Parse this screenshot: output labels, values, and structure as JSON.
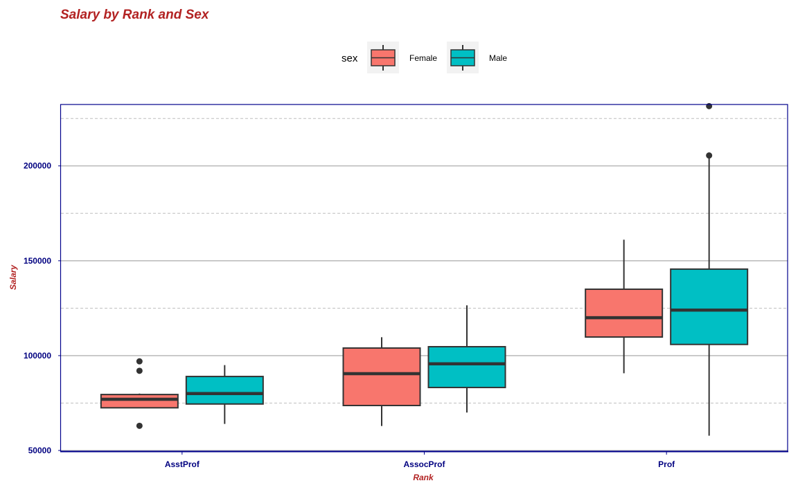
{
  "chart_data": {
    "type": "box",
    "title": "Salary by Rank and Sex",
    "xlabel": "Rank",
    "ylabel": "Salary",
    "categories": [
      "AsstProf",
      "AssocProf",
      "Prof"
    ],
    "ylim": [
      50000,
      232000
    ],
    "yticks": [
      50000,
      100000,
      150000,
      200000
    ],
    "ytick_labels": [
      "50000",
      "100000",
      "150000",
      "200000"
    ],
    "minor_grid": [
      75000,
      125000,
      175000,
      225000
    ],
    "grid": true,
    "legend": {
      "title": "sex",
      "placement": "top",
      "entries": [
        "Female",
        "Male"
      ]
    },
    "series": [
      {
        "name": "Female",
        "color": "#f8766d",
        "boxes": [
          {
            "category": "AsstProf",
            "whisker_low": 72500,
            "q1": 72500,
            "median": 77000,
            "q3": 79500,
            "whisker_high": 80000,
            "outliers": [
              97000,
              92000,
              63000
            ]
          },
          {
            "category": "AssocProf",
            "whisker_low": 62900,
            "q1": 73700,
            "median": 90500,
            "q3": 104000,
            "whisker_high": 109700,
            "outliers": []
          },
          {
            "category": "Prof",
            "whisker_low": 90700,
            "q1": 109800,
            "median": 120000,
            "q3": 135000,
            "whisker_high": 161100,
            "outliers": []
          }
        ]
      },
      {
        "name": "Male",
        "color": "#00bfc4",
        "boxes": [
          {
            "category": "AsstProf",
            "whisker_low": 64000,
            "q1": 74500,
            "median": 80000,
            "q3": 89000,
            "whisker_high": 95000,
            "outliers": []
          },
          {
            "category": "AssocProf",
            "whisker_low": 70000,
            "q1": 83200,
            "median": 95700,
            "q3": 104700,
            "whisker_high": 126500,
            "outliers": []
          },
          {
            "category": "Prof",
            "whisker_low": 57800,
            "q1": 105900,
            "median": 124000,
            "q3": 145600,
            "whisker_high": 205500,
            "outliers": [
              231500,
              205500
            ]
          }
        ]
      }
    ],
    "colors": {
      "title": "#b22222",
      "axis_title": "#b22222",
      "tick_label": "#000080",
      "panel_border": "#00008b",
      "grid_major": "#bebebe",
      "grid_minor": "#bebebe",
      "box_line": "#333333"
    }
  }
}
